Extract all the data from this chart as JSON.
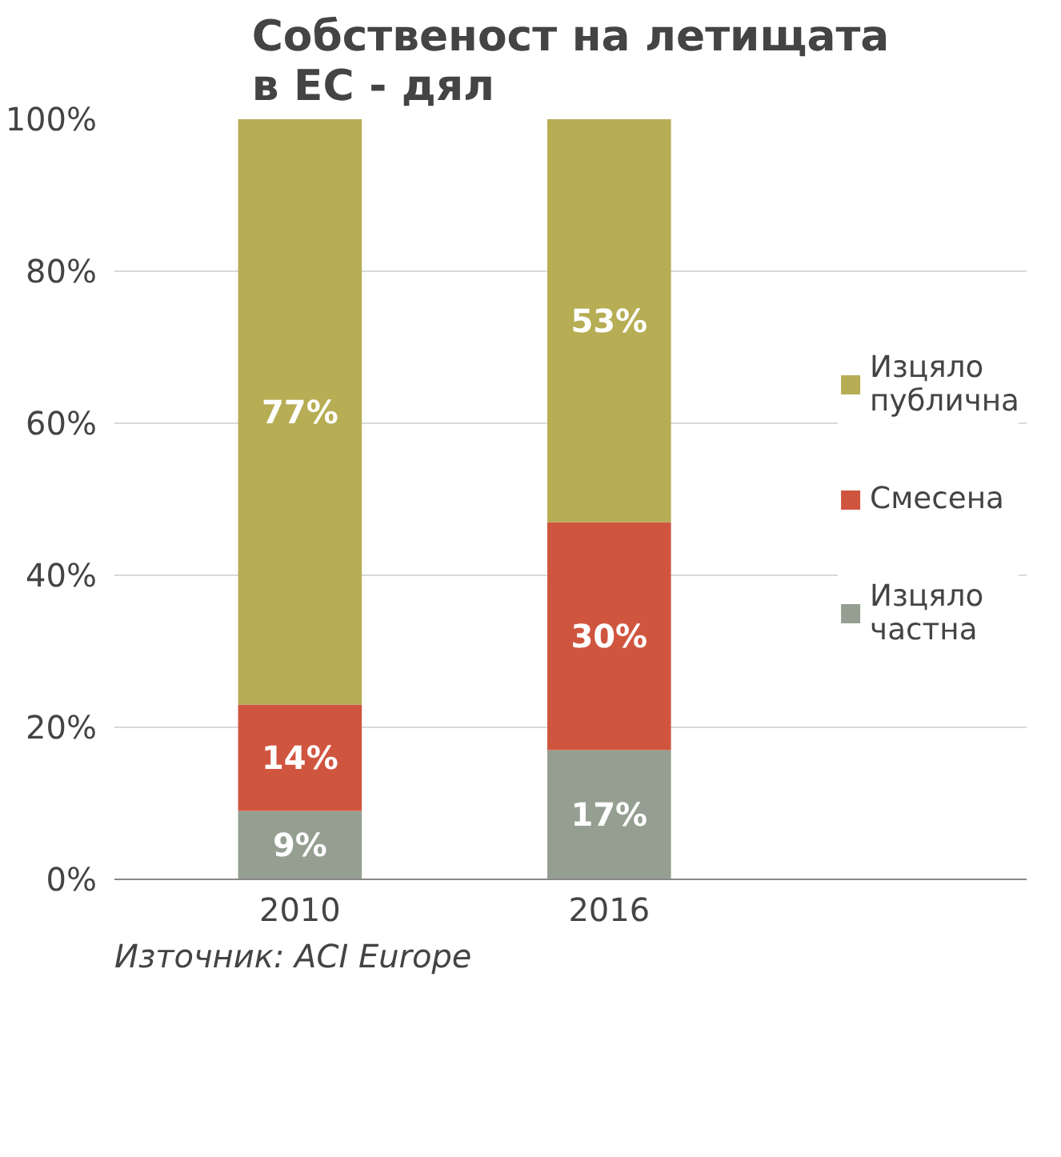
{
  "chart_data": {
    "type": "bar",
    "stacked": true,
    "title": "Собственост на летищата в ЕС - дял",
    "categories": [
      "2010",
      "2016"
    ],
    "series": [
      {
        "name": "Изцяло частна",
        "color": "#949f91",
        "values": [
          9,
          17
        ],
        "value_labels": [
          "9%",
          "17%"
        ]
      },
      {
        "name": "Смесена",
        "color": "#d0553f",
        "values": [
          14,
          30
        ],
        "value_labels": [
          "14%",
          "30%"
        ]
      },
      {
        "name": "Изцяло публична",
        "color": "#b6ad54",
        "values": [
          77,
          53
        ],
        "value_labels": [
          "77%",
          "53%"
        ]
      }
    ],
    "ylim": [
      0,
      100
    ],
    "yticks": [
      {
        "value": 0,
        "label": "0%"
      },
      {
        "value": 20,
        "label": "20%"
      },
      {
        "value": 40,
        "label": "40%"
      },
      {
        "value": 60,
        "label": "60%"
      },
      {
        "value": 80,
        "label": "80%"
      },
      {
        "value": 100,
        "label": "100%"
      }
    ],
    "grid": "y",
    "legend": "right",
    "annotations": [
      "Източник: ACI Europe"
    ]
  }
}
